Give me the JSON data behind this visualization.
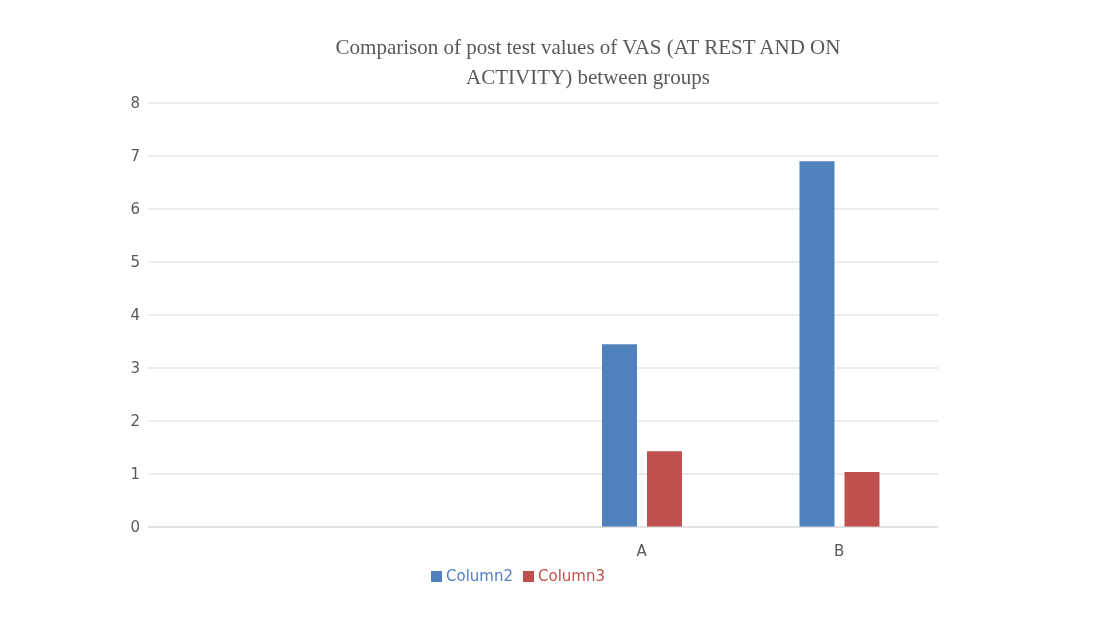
{
  "chart_data": {
    "type": "bar",
    "title": "Comparison of post test values of VAS (AT REST AND ON ACTIVITY) between groups",
    "categories": [
      null,
      null,
      "A",
      "B"
    ],
    "series": [
      {
        "name": "Column2",
        "color": "#4f81bd",
        "values": [
          null,
          null,
          3.45,
          6.9
        ]
      },
      {
        "name": "Column3",
        "color": "#c0504d",
        "values": [
          null,
          null,
          1.43,
          1.04
        ]
      }
    ],
    "ylim": [
      0,
      8
    ],
    "yticks": [
      0,
      1,
      2,
      3,
      4,
      5,
      6,
      7,
      8
    ],
    "grid": "y",
    "legend": "bottom"
  }
}
